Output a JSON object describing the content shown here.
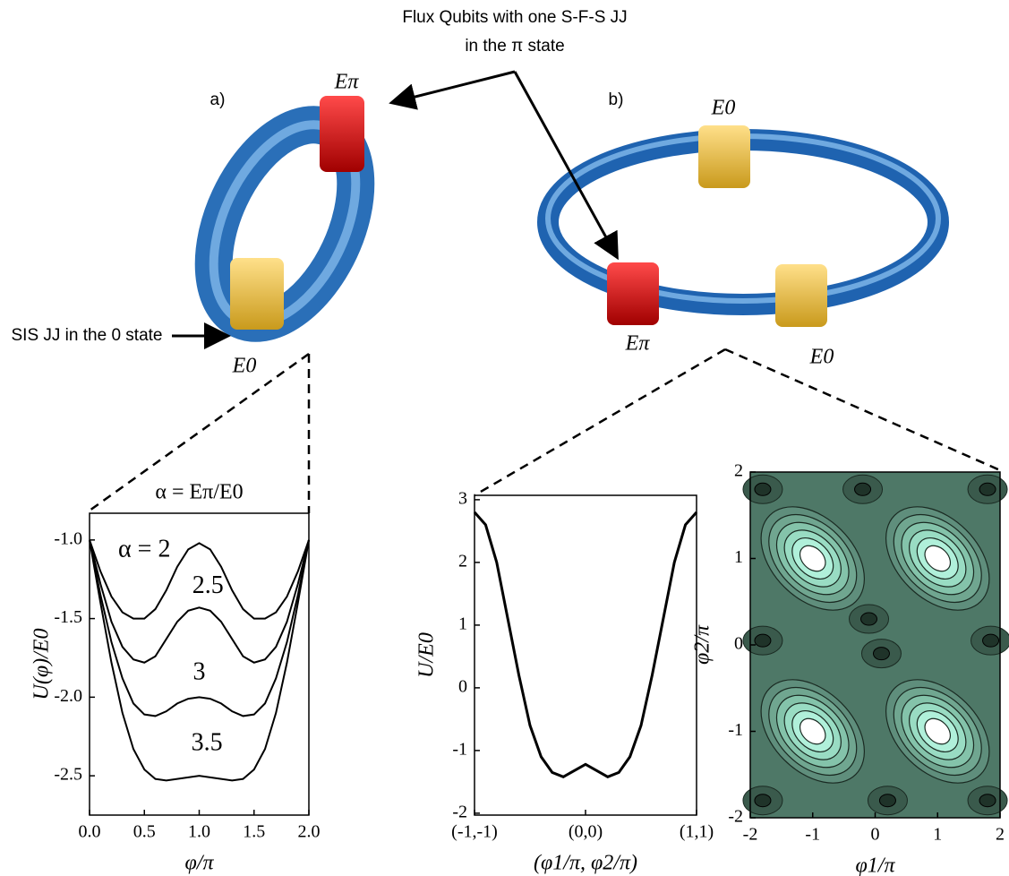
{
  "chart_data": [
    {
      "type": "line",
      "title": "α = Eπ/E0",
      "xlabel": "φ/π",
      "ylabel": "U(φ)/E0",
      "x": [
        0,
        0.1,
        0.2,
        0.3,
        0.4,
        0.5,
        0.6,
        0.7,
        0.8,
        0.9,
        1.0,
        1.1,
        1.2,
        1.3,
        1.4,
        1.5,
        1.6,
        1.7,
        1.8,
        1.9,
        2.0
      ],
      "series": [
        {
          "name": "α = 2",
          "color": "#000000",
          "values": [
            -1.0,
            -1.2,
            -1.36,
            -1.46,
            -1.5,
            -1.5,
            -1.44,
            -1.32,
            -1.17,
            -1.06,
            -1.02,
            -1.06,
            -1.17,
            -1.32,
            -1.44,
            -1.5,
            -1.5,
            -1.46,
            -1.36,
            -1.2,
            -1.0
          ]
        },
        {
          "name": "2.5",
          "color": "#000000",
          "values": [
            -1.0,
            -1.28,
            -1.52,
            -1.68,
            -1.76,
            -1.78,
            -1.74,
            -1.63,
            -1.52,
            -1.45,
            -1.43,
            -1.45,
            -1.52,
            -1.63,
            -1.74,
            -1.78,
            -1.76,
            -1.68,
            -1.52,
            -1.28,
            -1.0
          ]
        },
        {
          "name": "3",
          "color": "#000000",
          "values": [
            -1.0,
            -1.35,
            -1.65,
            -1.88,
            -2.04,
            -2.11,
            -2.12,
            -2.09,
            -2.04,
            -2.01,
            -2.0,
            -2.01,
            -2.04,
            -2.09,
            -2.12,
            -2.11,
            -2.04,
            -1.88,
            -1.65,
            -1.35,
            -1.0
          ]
        },
        {
          "name": "3.5",
          "color": "#000000",
          "values": [
            -1.0,
            -1.4,
            -1.78,
            -2.1,
            -2.33,
            -2.46,
            -2.52,
            -2.53,
            -2.52,
            -2.51,
            -2.5,
            -2.51,
            -2.52,
            -2.53,
            -2.52,
            -2.46,
            -2.33,
            -2.1,
            -1.78,
            -1.4,
            -1.0
          ]
        }
      ],
      "xlim": [
        0,
        2
      ],
      "ylim": [
        -2.75,
        -0.83
      ],
      "xticks": [
        {
          "value": 0,
          "label": "0.0"
        },
        0.5,
        {
          "value": 1,
          "label": "1.0"
        },
        1.5,
        {
          "value": 2,
          "label": "2.0"
        }
      ],
      "yticks": [
        {
          "value": -1,
          "label": "-1.0"
        },
        -1.5,
        {
          "value": -2,
          "label": "-2.0"
        },
        -2.5
      ]
    },
    {
      "type": "line",
      "xlabel": "(φ1/π, φ2/π)",
      "ylabel": "U/E0",
      "x": [
        -1,
        -0.9,
        -0.8,
        -0.7,
        -0.6,
        -0.5,
        -0.4,
        -0.3,
        -0.2,
        -0.1,
        0,
        0.1,
        0.2,
        0.3,
        0.4,
        0.5,
        0.6,
        0.7,
        0.8,
        0.9,
        1
      ],
      "values": [
        2.8,
        2.6,
        2.0,
        1.1,
        0.2,
        -0.6,
        -1.1,
        -1.35,
        -1.42,
        -1.32,
        -1.22,
        -1.32,
        -1.42,
        -1.35,
        -1.1,
        -0.6,
        0.2,
        1.1,
        2.0,
        2.6,
        2.8
      ],
      "color": "#000000",
      "xlim": [
        -1,
        1
      ],
      "ylim": [
        -2.03,
        3.07
      ],
      "xticks": [
        {
          "value": -1,
          "label": "(-1,-1)"
        },
        {
          "value": 0,
          "label": "(0,0)"
        },
        {
          "value": 1,
          "label": "(1,1)"
        }
      ],
      "yticks": [
        -2,
        -1,
        0,
        1,
        2,
        3
      ]
    },
    {
      "type": "contour",
      "xlabel": "φ1/π",
      "ylabel": "φ2/π",
      "xlim": [
        -2,
        2
      ],
      "ylim": [
        -2,
        2
      ],
      "xticks": [
        -2,
        -1,
        0,
        1,
        2
      ],
      "yticks": [
        -2,
        -1,
        0,
        1,
        2
      ]
    }
  ],
  "diagram": {
    "callout": [
      "Flux Qubits with one S-F-S JJ",
      "in the π state"
    ],
    "panel_a": "a)",
    "panel_b": "b)",
    "a_top": "Eπ",
    "a_bottom": "E0",
    "sis_label": "SIS JJ in the 0 state",
    "b_top": "E0",
    "b_left": "Eπ",
    "b_right": "E0"
  }
}
